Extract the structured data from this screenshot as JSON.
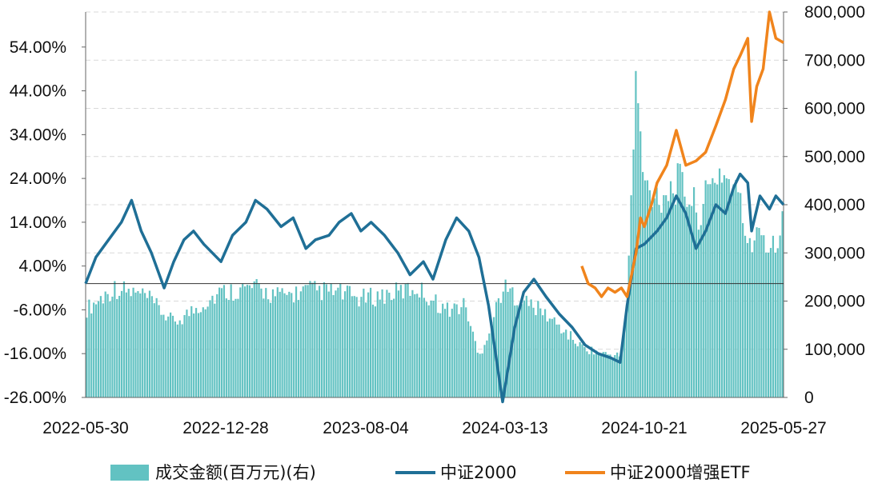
{
  "chart_data": {
    "type": "bar+line",
    "title": "",
    "legend_position": "bottom",
    "grid": "horizontal dashed",
    "x_tick_labels": [
      "2022-05-30",
      "2022-12-28",
      "2023-08-04",
      "2024-03-13",
      "2024-10-21",
      "2025-05-27"
    ],
    "y_left": {
      "min": -0.26,
      "max": 0.62,
      "ticks": [
        -0.26,
        -0.16,
        -0.06,
        0.04,
        0.14,
        0.24,
        0.34,
        0.44,
        0.54
      ],
      "tick_labels": [
        "-26.00%",
        "-16.00%",
        "-6.00%",
        "4.00%",
        "14.00%",
        "24.00%",
        "34.00%",
        "44.00%",
        "54.00%"
      ]
    },
    "y_right": {
      "min": 0,
      "max": 800000,
      "ticks": [
        0,
        100000,
        200000,
        300000,
        400000,
        500000,
        600000,
        700000,
        800000
      ],
      "tick_labels": [
        "0",
        "100,000",
        "200,000",
        "300,000",
        "400,000",
        "500,000",
        "600,000",
        "700,000",
        "800,000"
      ]
    },
    "colors": {
      "volume": "#62c2c2",
      "csi2000": "#1f6f96",
      "etf": "#f0841c",
      "grid": "#d9d9d9",
      "zero_line": "#333333"
    },
    "series": [
      {
        "name": "成交金额(百万元)(右)",
        "type": "bar",
        "axis": "right",
        "x": [
          "2022-05-30",
          "2022-07-15",
          "2022-09-01",
          "2022-10-15",
          "2022-12-01",
          "2022-12-28",
          "2023-02-15",
          "2023-04-01",
          "2023-05-15",
          "2023-06-30",
          "2023-08-04",
          "2023-09-15",
          "2023-10-31",
          "2023-12-15",
          "2024-01-15",
          "2024-02-05",
          "2024-02-20",
          "2024-03-13",
          "2024-04-15",
          "2024-05-15",
          "2024-06-15",
          "2024-07-15",
          "2024-08-15",
          "2024-09-15",
          "2024-09-24",
          "2024-10-08",
          "2024-10-21",
          "2024-11-15",
          "2024-12-15",
          "2025-01-15",
          "2025-02-15",
          "2025-03-15",
          "2025-04-07",
          "2025-04-15",
          "2025-05-05",
          "2025-05-27"
        ],
        "values": [
          200000,
          250000,
          230000,
          170000,
          215000,
          240000,
          250000,
          230000,
          245000,
          240000,
          225000,
          235000,
          250000,
          200000,
          210000,
          90000,
          150000,
          250000,
          220000,
          195000,
          155000,
          115000,
          100000,
          95000,
          220000,
          720000,
          480000,
          460000,
          490000,
          420000,
          520000,
          470000,
          320000,
          410000,
          340000,
          400000
        ]
      },
      {
        "name": "中证2000",
        "type": "line",
        "axis": "left",
        "x": [
          "2022-05-30",
          "2022-06-15",
          "2022-07-05",
          "2022-07-25",
          "2022-08-10",
          "2022-08-25",
          "2022-09-10",
          "2022-09-30",
          "2022-10-15",
          "2022-10-31",
          "2022-11-15",
          "2022-12-01",
          "2022-12-28",
          "2023-01-15",
          "2023-02-05",
          "2023-02-20",
          "2023-03-10",
          "2023-04-01",
          "2023-04-20",
          "2023-05-10",
          "2023-05-25",
          "2023-06-15",
          "2023-07-01",
          "2023-07-20",
          "2023-08-04",
          "2023-08-20",
          "2023-09-10",
          "2023-10-01",
          "2023-10-20",
          "2023-11-10",
          "2023-11-25",
          "2023-12-15",
          "2024-01-01",
          "2024-01-20",
          "2024-02-05",
          "2024-02-20",
          "2024-03-13",
          "2024-04-01",
          "2024-04-15",
          "2024-05-01",
          "2024-05-20",
          "2024-06-10",
          "2024-06-30",
          "2024-07-20",
          "2024-08-10",
          "2024-08-30",
          "2024-09-13",
          "2024-09-24",
          "2024-10-08",
          "2024-10-21",
          "2024-11-10",
          "2024-11-25",
          "2024-12-10",
          "2024-12-25",
          "2025-01-10",
          "2025-01-25",
          "2025-02-10",
          "2025-02-25",
          "2025-03-10",
          "2025-03-20",
          "2025-04-01",
          "2025-04-07",
          "2025-04-20",
          "2025-05-05",
          "2025-05-15",
          "2025-05-27"
        ],
        "values": [
          0.0,
          0.06,
          0.1,
          0.14,
          0.19,
          0.12,
          0.07,
          -0.01,
          0.05,
          0.1,
          0.12,
          0.09,
          0.05,
          0.11,
          0.14,
          0.19,
          0.17,
          0.13,
          0.15,
          0.08,
          0.1,
          0.11,
          0.14,
          0.16,
          0.12,
          0.14,
          0.11,
          0.07,
          0.02,
          0.05,
          0.01,
          0.1,
          0.15,
          0.12,
          0.06,
          -0.05,
          -0.27,
          -0.1,
          -0.02,
          0.01,
          -0.03,
          -0.07,
          -0.1,
          -0.14,
          -0.16,
          -0.17,
          -0.18,
          -0.05,
          0.08,
          0.09,
          0.12,
          0.15,
          0.2,
          0.16,
          0.08,
          0.12,
          0.18,
          0.16,
          0.22,
          0.25,
          0.23,
          0.12,
          0.2,
          0.17,
          0.2,
          0.18
        ]
      },
      {
        "name": "中证2000增强ETF",
        "type": "line",
        "axis": "left",
        "x": [
          "2024-07-15",
          "2024-07-25",
          "2024-08-05",
          "2024-08-15",
          "2024-08-25",
          "2024-09-05",
          "2024-09-15",
          "2024-09-24",
          "2024-10-08",
          "2024-10-15",
          "2024-10-21",
          "2024-11-01",
          "2024-11-10",
          "2024-11-25",
          "2024-12-10",
          "2024-12-25",
          "2025-01-10",
          "2025-01-25",
          "2025-02-10",
          "2025-02-25",
          "2025-03-10",
          "2025-03-20",
          "2025-04-01",
          "2025-04-07",
          "2025-04-15",
          "2025-04-25",
          "2025-05-05",
          "2025-05-15",
          "2025-05-27"
        ],
        "values": [
          0.04,
          0.0,
          -0.01,
          -0.03,
          -0.01,
          -0.02,
          -0.01,
          -0.03,
          0.07,
          0.15,
          0.13,
          0.18,
          0.23,
          0.27,
          0.35,
          0.27,
          0.28,
          0.3,
          0.36,
          0.42,
          0.49,
          0.52,
          0.56,
          0.37,
          0.45,
          0.49,
          0.62,
          0.56,
          0.55
        ]
      }
    ]
  }
}
